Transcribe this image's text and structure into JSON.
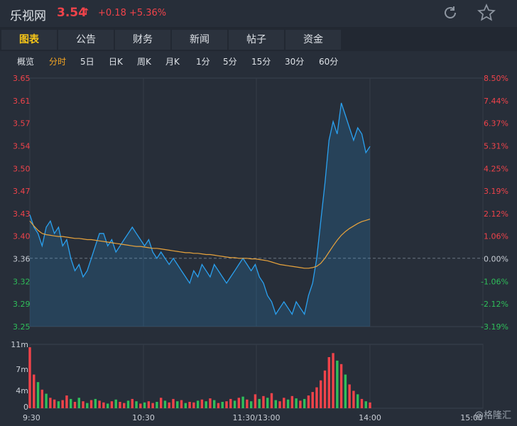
{
  "header": {
    "name": "乐视网",
    "price": "3.54",
    "arrow": "↑",
    "change": "+0.18 +5.36%"
  },
  "tabs": [
    "图表",
    "公告",
    "财务",
    "新闻",
    "帖子",
    "资金"
  ],
  "active_tab": 0,
  "periods": [
    "概览",
    "分时",
    "5日",
    "日K",
    "周K",
    "月K",
    "1分",
    "5分",
    "15分",
    "30分",
    "60分"
  ],
  "active_period": 1,
  "colors": {
    "up": "#f0434a",
    "down": "#2fbf5a",
    "price_line": "#2aa1f0",
    "avg_line": "#e8a33c"
  },
  "watermark": "@格隆汇",
  "chart_data": {
    "type": "line",
    "price_ticks": [
      "3.65",
      "3.61",
      "3.57",
      "3.54",
      "3.50",
      "3.47",
      "3.43",
      "3.40",
      "3.36",
      "3.32",
      "3.29",
      "3.25"
    ],
    "pct_ticks": [
      "8.50%",
      "7.44%",
      "6.37%",
      "5.31%",
      "4.25%",
      "3.19%",
      "2.12%",
      "1.06%",
      "0.00%",
      "-1.06%",
      "-2.12%",
      "-3.19%"
    ],
    "time_labels": [
      "9:30",
      "10:30",
      "11:30/13:00",
      "14:00",
      "15:00"
    ],
    "volume_ticks": [
      "11m",
      "7m",
      "4m",
      "0"
    ],
    "prev_close": 3.36,
    "y_range": [
      3.25,
      3.65
    ],
    "volume_max_m": 11,
    "price": [
      3.43,
      3.41,
      3.4,
      3.38,
      3.41,
      3.42,
      3.4,
      3.41,
      3.38,
      3.39,
      3.36,
      3.34,
      3.35,
      3.33,
      3.34,
      3.36,
      3.38,
      3.4,
      3.4,
      3.38,
      3.39,
      3.37,
      3.38,
      3.39,
      3.4,
      3.41,
      3.4,
      3.39,
      3.38,
      3.39,
      3.37,
      3.36,
      3.37,
      3.36,
      3.35,
      3.36,
      3.35,
      3.34,
      3.33,
      3.32,
      3.34,
      3.33,
      3.35,
      3.34,
      3.33,
      3.35,
      3.34,
      3.33,
      3.32,
      3.33,
      3.34,
      3.35,
      3.36,
      3.35,
      3.34,
      3.35,
      3.33,
      3.32,
      3.3,
      3.29,
      3.27,
      3.28,
      3.29,
      3.28,
      3.27,
      3.29,
      3.28,
      3.27,
      3.3,
      3.32,
      3.36,
      3.42,
      3.48,
      3.55,
      3.58,
      3.56,
      3.61,
      3.59,
      3.57,
      3.55,
      3.57,
      3.56,
      3.53,
      3.54
    ],
    "avg": [
      3.42,
      3.412,
      3.405,
      3.4,
      3.398,
      3.397,
      3.396,
      3.395,
      3.395,
      3.394,
      3.393,
      3.392,
      3.392,
      3.391,
      3.39,
      3.39,
      3.389,
      3.388,
      3.387,
      3.386,
      3.385,
      3.384,
      3.383,
      3.382,
      3.381,
      3.38,
      3.379,
      3.379,
      3.378,
      3.377,
      3.376,
      3.376,
      3.375,
      3.374,
      3.373,
      3.372,
      3.371,
      3.37,
      3.369,
      3.369,
      3.368,
      3.368,
      3.367,
      3.366,
      3.366,
      3.365,
      3.364,
      3.363,
      3.362,
      3.361,
      3.361,
      3.36,
      3.36,
      3.36,
      3.359,
      3.359,
      3.358,
      3.357,
      3.356,
      3.354,
      3.352,
      3.35,
      3.349,
      3.348,
      3.347,
      3.346,
      3.345,
      3.344,
      3.344,
      3.345,
      3.347,
      3.352,
      3.36,
      3.37,
      3.38,
      3.389,
      3.397,
      3.403,
      3.408,
      3.412,
      3.416,
      3.419,
      3.421,
      3.423
    ],
    "volume": [
      10.5,
      5.8,
      4.5,
      3.2,
      2.5,
      1.8,
      1.5,
      1.2,
      1.4,
      2.2,
      1.6,
      1.1,
      1.8,
      1.2,
      0.9,
      1.4,
      1.6,
      1.3,
      1.0,
      0.8,
      1.2,
      1.5,
      1.1,
      0.9,
      1.3,
      1.6,
      1.2,
      0.8,
      1.0,
      1.2,
      0.9,
      1.1,
      1.8,
      1.3,
      1.0,
      1.6,
      1.2,
      1.4,
      0.9,
      1.1,
      1.0,
      1.3,
      1.5,
      1.2,
      1.7,
      1.4,
      0.9,
      1.1,
      1.2,
      1.6,
      1.3,
      1.8,
      2.0,
      1.5,
      1.2,
      2.4,
      1.6,
      2.1,
      1.8,
      2.6,
      1.4,
      1.2,
      1.8,
      1.5,
      2.1,
      1.7,
      1.3,
      1.6,
      2.2,
      2.8,
      3.6,
      4.8,
      6.5,
      8.8,
      9.5,
      8.2,
      7.6,
      5.8,
      4.1,
      3.0,
      2.4,
      1.6,
      1.2,
      1.0
    ],
    "vol_up": [
      1,
      1,
      0,
      1,
      0,
      1,
      1,
      0,
      1,
      1,
      0,
      1,
      0,
      1,
      0,
      1,
      0,
      1,
      1,
      0,
      1,
      0,
      1,
      1,
      0,
      1,
      0,
      1,
      0,
      1,
      1,
      0,
      1,
      0,
      1,
      1,
      0,
      1,
      0,
      1,
      1,
      0,
      1,
      0,
      1,
      0,
      1,
      0,
      1,
      1,
      0,
      1,
      0,
      1,
      0,
      1,
      0,
      1,
      0,
      1,
      0,
      1,
      1,
      0,
      1,
      0,
      1,
      0,
      1,
      1,
      1,
      1,
      1,
      1,
      1,
      0,
      1,
      0,
      1,
      1,
      0,
      1,
      0,
      1
    ]
  }
}
